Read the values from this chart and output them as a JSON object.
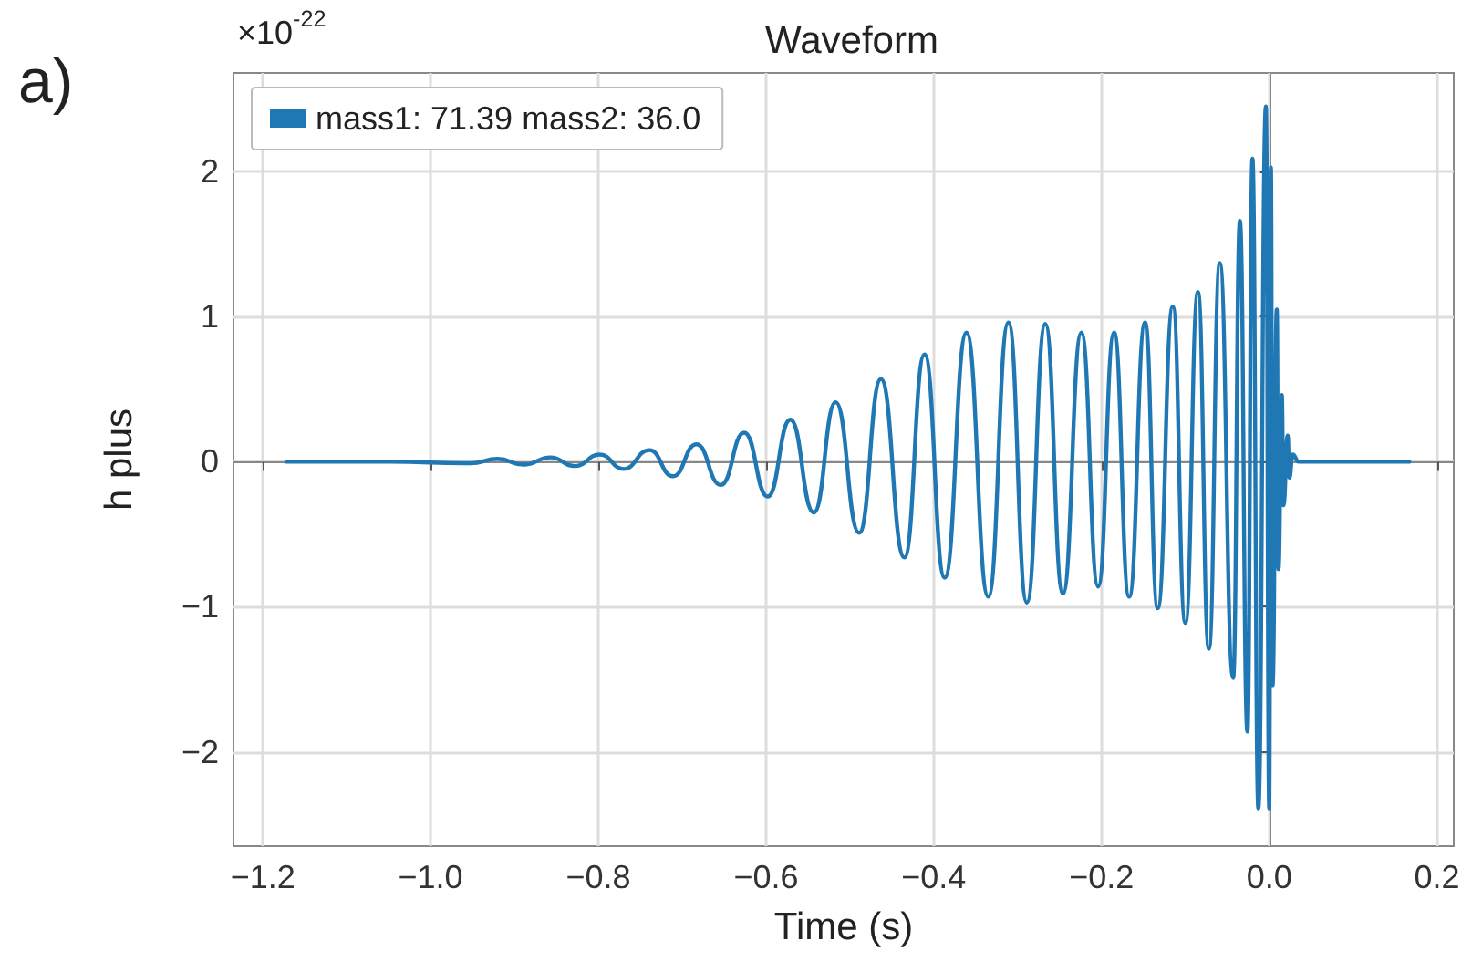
{
  "chart_data": {
    "type": "line",
    "title": "Waveform",
    "xlabel": "Time (s)",
    "ylabel": "h plus",
    "annotations": [
      "×10$^{-22}$",
      "a)"
    ],
    "series": [
      {
        "name": "mass1: 71.39 mass2: 36.0",
        "color": "#1f77b4",
        "x": [
          -1.172,
          -1.05,
          -0.952,
          -0.92,
          -0.889,
          -0.857,
          -0.828,
          -0.798,
          -0.77,
          -0.739,
          -0.711,
          -0.683,
          -0.654,
          -0.626,
          -0.598,
          -0.571,
          -0.543,
          -0.517,
          -0.489,
          -0.463,
          -0.435,
          -0.411,
          -0.387,
          -0.361,
          -0.335,
          -0.311,
          -0.289,
          -0.267,
          -0.246,
          -0.224,
          -0.204,
          -0.185,
          -0.167,
          -0.148,
          -0.133,
          -0.115,
          -0.1,
          -0.085,
          -0.072,
          -0.059,
          -0.043,
          -0.035,
          -0.026,
          -0.02,
          -0.013,
          -0.004,
          0.0,
          0.002,
          0.004,
          0.009,
          0.011,
          0.015,
          0.017,
          0.022,
          0.024,
          0.028,
          0.035,
          0.167
        ],
        "values": [
          0,
          0,
          -0.01,
          0.02,
          -0.02,
          0.03,
          -0.03,
          0.05,
          -0.05,
          0.08,
          -0.1,
          0.12,
          -0.16,
          0.2,
          -0.24,
          0.29,
          -0.35,
          0.41,
          -0.49,
          0.57,
          -0.66,
          0.74,
          -0.8,
          0.89,
          -0.93,
          0.96,
          -0.97,
          0.95,
          -0.91,
          0.89,
          -0.86,
          0.89,
          -0.93,
          0.96,
          -1.01,
          1.07,
          -1.11,
          1.17,
          -1.29,
          1.37,
          -1.49,
          1.66,
          -1.86,
          2.09,
          -2.39,
          2.45,
          -2.39,
          2.03,
          -1.54,
          1.05,
          -0.74,
          0.46,
          -0.3,
          0.18,
          -0.11,
          0.05,
          0,
          0
        ]
      }
    ],
    "xlim": [
      -1.235,
      0.22
    ],
    "xticks": [
      {
        "value": -1.2,
        "label": "−1.2"
      },
      {
        "value": -1.0,
        "label": "−1.0"
      },
      {
        "value": -0.8,
        "label": "−0.8"
      },
      {
        "value": -0.6,
        "label": "−0.6"
      },
      {
        "value": -0.4,
        "label": "−0.4"
      },
      {
        "value": -0.2,
        "label": "−0.2"
      },
      {
        "value": 0,
        "label": "0.0"
      },
      {
        "value": 0.2,
        "label": "0.2"
      }
    ],
    "ylim": [
      -2.65,
      2.68
    ],
    "yticks": [
      {
        "value": -2,
        "label": "−2"
      },
      {
        "value": -1,
        "label": "−1"
      },
      0,
      1,
      2
    ],
    "grid": true,
    "legend": "top left",
    "marker": "none",
    "line_style": "solid"
  }
}
